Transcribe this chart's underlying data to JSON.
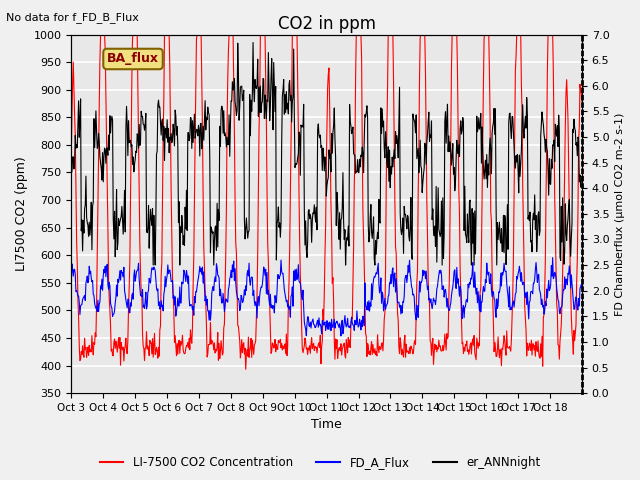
{
  "title": "CO2 in ppm",
  "top_left_text": "No data for f_FD_B_Flux",
  "box_label": "BA_flux",
  "xlabel": "Time",
  "ylabel_left": "LI7500 CO2 (ppm)",
  "ylabel_right": "FD Chamberflux (µmol CO2 m-2 s-1)",
  "ylim_left": [
    350,
    1000
  ],
  "ylim_right": [
    0.0,
    7.0
  ],
  "yticks_left": [
    350,
    400,
    450,
    500,
    550,
    600,
    650,
    700,
    750,
    800,
    850,
    900,
    950,
    1000
  ],
  "yticks_right": [
    0.0,
    0.5,
    1.0,
    1.5,
    2.0,
    2.5,
    3.0,
    3.5,
    4.0,
    4.5,
    5.0,
    5.5,
    6.0,
    6.5,
    7.0
  ],
  "xtick_labels": [
    "Oct 3",
    "Oct 4",
    "Oct 5",
    "Oct 6",
    "Oct 7",
    "Oct 8",
    "Oct 9",
    "Oct 10",
    "Oct 11",
    "Oct 12",
    "Oct 13",
    "Oct 14",
    "Oct 15",
    "Oct 16",
    "Oct 17",
    "Oct 18"
  ],
  "legend_labels": [
    "LI-7500 CO2 Concentration",
    "FD_A_Flux",
    "er_ANNnight"
  ],
  "legend_colors": [
    "red",
    "blue",
    "black"
  ],
  "line_colors": [
    "red",
    "blue",
    "black"
  ],
  "background_color": "#f0f0f0",
  "plot_bg_color": "#e8e8e8",
  "grid_color": "white",
  "box_color": "#f0e080",
  "box_edge_color": "#806000"
}
